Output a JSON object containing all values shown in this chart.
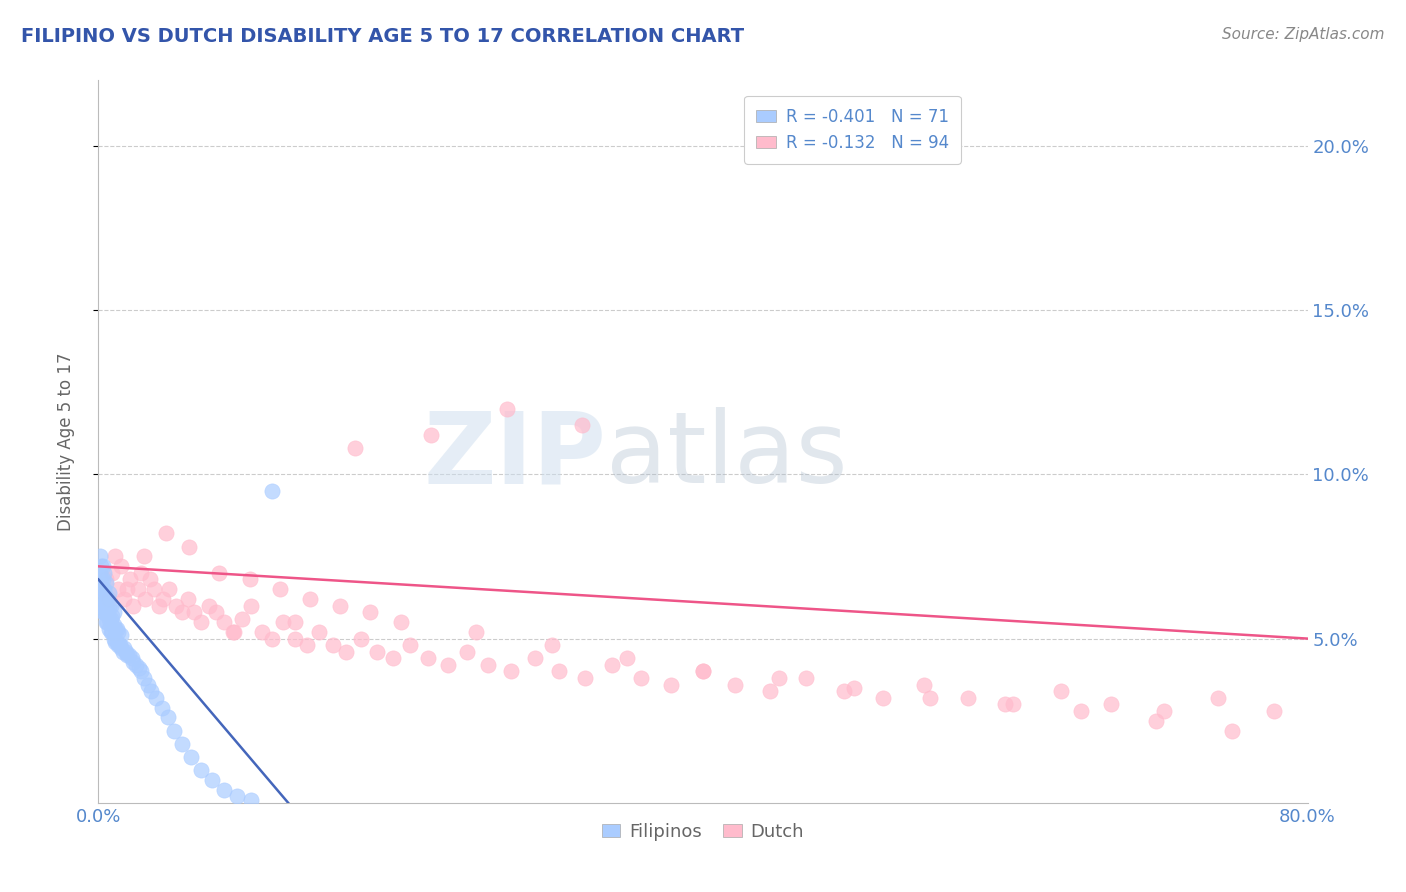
{
  "title": "FILIPINO VS DUTCH DISABILITY AGE 5 TO 17 CORRELATION CHART",
  "source_text": "Source: ZipAtlas.com",
  "ylabel": "Disability Age 5 to 17",
  "xlim": [
    0.0,
    0.8
  ],
  "ylim": [
    0.0,
    0.22
  ],
  "xticks_show": [
    0.0,
    0.8
  ],
  "yticks": [
    0.05,
    0.1,
    0.15,
    0.2
  ],
  "background_color": "#ffffff",
  "grid_color": "#cccccc",
  "title_color": "#3355aa",
  "source_color": "#888888",
  "axis_label_color": "#666666",
  "tick_color": "#5588cc",
  "filipino_color": "#aaccff",
  "dutch_color": "#ffbbcc",
  "filipino_line_color": "#4466bb",
  "dutch_line_color": "#ee5588",
  "legend_filipino_R": "-0.401",
  "legend_filipino_N": "71",
  "legend_dutch_R": "-0.132",
  "legend_dutch_N": "94",
  "watermark_zip": "ZIP",
  "watermark_atlas": "atlas",
  "filipino_x": [
    0.001,
    0.001,
    0.001,
    0.002,
    0.002,
    0.002,
    0.002,
    0.003,
    0.003,
    0.003,
    0.003,
    0.003,
    0.004,
    0.004,
    0.004,
    0.004,
    0.004,
    0.005,
    0.005,
    0.005,
    0.005,
    0.005,
    0.006,
    0.006,
    0.006,
    0.007,
    0.007,
    0.007,
    0.007,
    0.008,
    0.008,
    0.008,
    0.009,
    0.009,
    0.01,
    0.01,
    0.01,
    0.011,
    0.011,
    0.012,
    0.012,
    0.013,
    0.013,
    0.014,
    0.015,
    0.015,
    0.016,
    0.017,
    0.018,
    0.019,
    0.02,
    0.022,
    0.023,
    0.025,
    0.027,
    0.028,
    0.03,
    0.033,
    0.035,
    0.038,
    0.042,
    0.046,
    0.05,
    0.055,
    0.061,
    0.068,
    0.075,
    0.083,
    0.092,
    0.101,
    0.115
  ],
  "filipino_y": [
    0.065,
    0.07,
    0.075,
    0.06,
    0.065,
    0.068,
    0.072,
    0.058,
    0.062,
    0.065,
    0.068,
    0.072,
    0.058,
    0.06,
    0.062,
    0.065,
    0.07,
    0.055,
    0.058,
    0.06,
    0.063,
    0.067,
    0.055,
    0.058,
    0.062,
    0.053,
    0.056,
    0.06,
    0.064,
    0.052,
    0.056,
    0.06,
    0.052,
    0.057,
    0.05,
    0.054,
    0.058,
    0.049,
    0.053,
    0.049,
    0.053,
    0.048,
    0.052,
    0.048,
    0.047,
    0.051,
    0.046,
    0.047,
    0.046,
    0.045,
    0.045,
    0.044,
    0.043,
    0.042,
    0.041,
    0.04,
    0.038,
    0.036,
    0.034,
    0.032,
    0.029,
    0.026,
    0.022,
    0.018,
    0.014,
    0.01,
    0.007,
    0.004,
    0.002,
    0.001,
    0.095
  ],
  "dutch_x": [
    0.003,
    0.005,
    0.007,
    0.009,
    0.011,
    0.013,
    0.015,
    0.017,
    0.019,
    0.021,
    0.023,
    0.026,
    0.028,
    0.031,
    0.034,
    0.037,
    0.04,
    0.043,
    0.047,
    0.051,
    0.055,
    0.059,
    0.063,
    0.068,
    0.073,
    0.078,
    0.083,
    0.089,
    0.095,
    0.101,
    0.108,
    0.115,
    0.122,
    0.13,
    0.138,
    0.146,
    0.155,
    0.164,
    0.174,
    0.184,
    0.195,
    0.206,
    0.218,
    0.231,
    0.244,
    0.258,
    0.273,
    0.289,
    0.305,
    0.322,
    0.34,
    0.359,
    0.379,
    0.4,
    0.421,
    0.444,
    0.468,
    0.493,
    0.519,
    0.546,
    0.575,
    0.605,
    0.637,
    0.67,
    0.705,
    0.741,
    0.778,
    0.03,
    0.045,
    0.06,
    0.08,
    0.1,
    0.12,
    0.14,
    0.16,
    0.18,
    0.2,
    0.25,
    0.3,
    0.35,
    0.4,
    0.45,
    0.5,
    0.55,
    0.6,
    0.65,
    0.7,
    0.75,
    0.32,
    0.27,
    0.22,
    0.17,
    0.13,
    0.09
  ],
  "dutch_y": [
    0.065,
    0.068,
    0.062,
    0.07,
    0.075,
    0.065,
    0.072,
    0.062,
    0.065,
    0.068,
    0.06,
    0.065,
    0.07,
    0.062,
    0.068,
    0.065,
    0.06,
    0.062,
    0.065,
    0.06,
    0.058,
    0.062,
    0.058,
    0.055,
    0.06,
    0.058,
    0.055,
    0.052,
    0.056,
    0.06,
    0.052,
    0.05,
    0.055,
    0.05,
    0.048,
    0.052,
    0.048,
    0.046,
    0.05,
    0.046,
    0.044,
    0.048,
    0.044,
    0.042,
    0.046,
    0.042,
    0.04,
    0.044,
    0.04,
    0.038,
    0.042,
    0.038,
    0.036,
    0.04,
    0.036,
    0.034,
    0.038,
    0.034,
    0.032,
    0.036,
    0.032,
    0.03,
    0.034,
    0.03,
    0.028,
    0.032,
    0.028,
    0.075,
    0.082,
    0.078,
    0.07,
    0.068,
    0.065,
    0.062,
    0.06,
    0.058,
    0.055,
    0.052,
    0.048,
    0.044,
    0.04,
    0.038,
    0.035,
    0.032,
    0.03,
    0.028,
    0.025,
    0.022,
    0.115,
    0.12,
    0.112,
    0.108,
    0.055,
    0.052
  ]
}
